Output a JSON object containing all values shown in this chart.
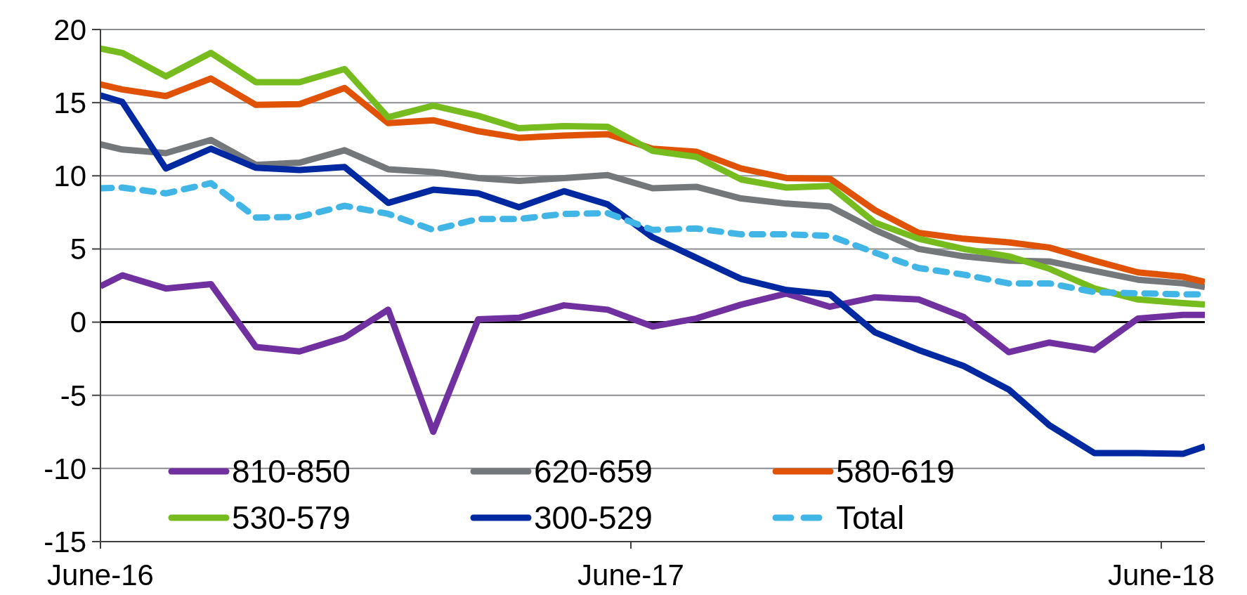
{
  "chart_data": {
    "type": "line",
    "x": [
      "2016-06-01",
      "2016-06-16",
      "2016-07-16",
      "2016-08-16",
      "2016-09-16",
      "2016-10-16",
      "2016-11-16",
      "2016-12-16",
      "2017-01-16",
      "2017-02-16",
      "2017-03-16",
      "2017-04-16",
      "2017-05-16",
      "2017-06-16",
      "2017-07-16",
      "2017-08-16",
      "2017-09-16",
      "2017-10-16",
      "2017-11-16",
      "2017-12-16",
      "2018-01-16",
      "2018-02-16",
      "2018-03-16",
      "2018-04-16",
      "2018-05-16",
      "2018-06-16",
      "2018-07-01"
    ],
    "xlim": [
      "2016-06-01",
      "2018-07-01"
    ],
    "xticks": [
      {
        "value": "2016-06-01",
        "label": "June-16"
      },
      {
        "value": "2017-06-01",
        "label": "June-17"
      },
      {
        "value": "2018-06-01",
        "label": "June-18"
      }
    ],
    "ylim": [
      -15,
      20
    ],
    "yticks": [
      -15,
      -10,
      -5,
      0,
      5,
      10,
      15,
      20
    ],
    "grid": "y",
    "legend": "bottom",
    "marker": "none",
    "ref_lines": [
      {
        "axis": "y",
        "value": 0,
        "color": "#000000"
      }
    ],
    "series": [
      {
        "name": "810-850",
        "color": "#7030a0",
        "values": [
          2.45,
          3.2,
          2.3,
          2.6,
          -1.7,
          -2.0,
          -1.05,
          0.85,
          -7.5,
          0.2,
          0.3,
          1.15,
          0.85,
          -0.3,
          0.25,
          1.2,
          1.95,
          1.05,
          1.7,
          1.55,
          0.35,
          -2.05,
          -1.4,
          -1.9,
          0.25,
          0.5,
          0.5
        ]
      },
      {
        "name": "620-659",
        "color": "#75787b",
        "values": [
          12.15,
          11.8,
          11.55,
          12.45,
          10.75,
          10.9,
          11.75,
          10.45,
          10.25,
          9.85,
          9.65,
          9.85,
          10.05,
          9.15,
          9.25,
          8.45,
          8.1,
          7.9,
          6.3,
          5.0,
          4.5,
          4.2,
          4.15,
          3.5,
          2.9,
          2.65,
          2.4
        ]
      },
      {
        "name": "580-619",
        "color": "#e05206",
        "values": [
          16.25,
          15.9,
          15.45,
          16.65,
          14.85,
          14.9,
          16.0,
          13.6,
          13.8,
          13.05,
          12.6,
          12.75,
          12.85,
          11.85,
          11.65,
          10.5,
          9.85,
          9.8,
          7.65,
          6.1,
          5.7,
          5.45,
          5.1,
          4.2,
          3.4,
          3.1,
          2.75
        ]
      },
      {
        "name": "530-579",
        "color": "#77bc1f",
        "values": [
          18.7,
          18.4,
          16.8,
          18.4,
          16.4,
          16.4,
          17.3,
          14.0,
          14.8,
          14.1,
          13.25,
          13.4,
          13.35,
          11.7,
          11.3,
          9.75,
          9.2,
          9.3,
          6.8,
          5.7,
          5.0,
          4.5,
          3.65,
          2.3,
          1.55,
          1.3,
          1.2
        ]
      },
      {
        "name": "300-529",
        "color": "#0028a0",
        "values": [
          15.5,
          15.05,
          10.5,
          11.85,
          10.55,
          10.4,
          10.6,
          8.15,
          9.05,
          8.8,
          7.85,
          8.95,
          8.05,
          5.8,
          4.4,
          2.95,
          2.2,
          1.9,
          -0.7,
          -1.9,
          -3.0,
          -4.6,
          -7.05,
          -8.95,
          -8.95,
          -9.0,
          -8.5
        ]
      },
      {
        "name": "Total",
        "color": "#41b6e6",
        "line_style": "dashed",
        "values": [
          9.15,
          9.2,
          8.8,
          9.5,
          7.15,
          7.2,
          7.95,
          7.4,
          6.3,
          7.05,
          7.05,
          7.4,
          7.45,
          6.3,
          6.4,
          6.0,
          6.0,
          5.9,
          4.75,
          3.7,
          3.25,
          2.65,
          2.65,
          2.05,
          1.97,
          1.9,
          1.9
        ]
      }
    ]
  }
}
